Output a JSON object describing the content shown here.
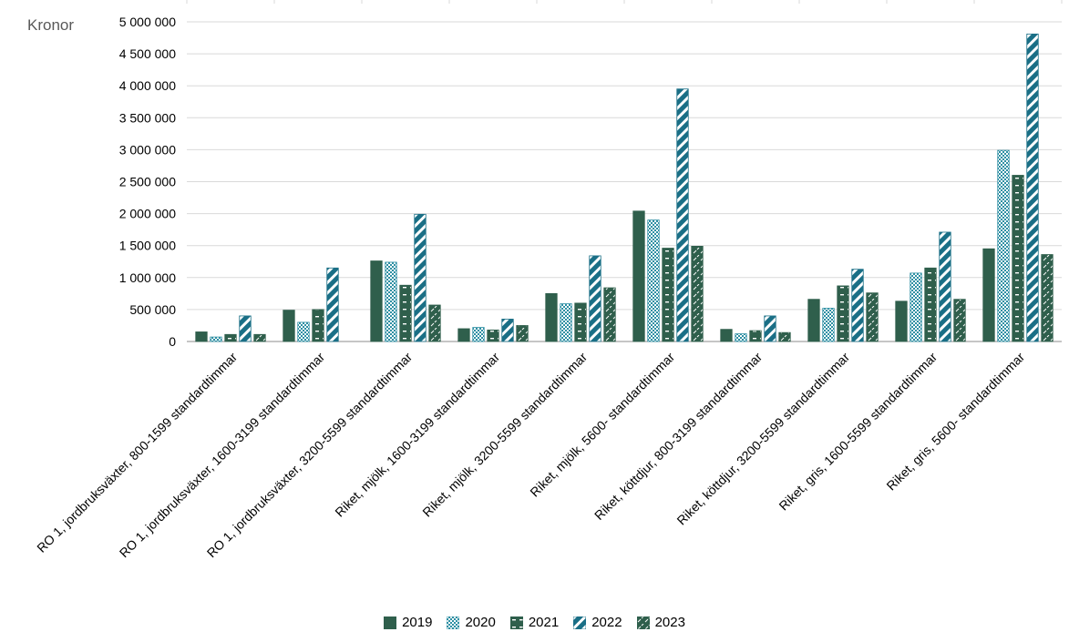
{
  "chart_data": {
    "type": "bar",
    "ylabel": "Kronor",
    "ylim": [
      0,
      5000000
    ],
    "ytick_step": 500000,
    "grid": true,
    "legend_position": "bottom",
    "categories": [
      "RO 1, jordbruksväxter, 800-1599 standardtimmar",
      "RO 1, jordbruksväxter, 1600-3199 standardtimmar",
      "RO 1, jordbruksväxter, 3200-5599 standardtimmar",
      "Riket, mjölk, 1600-3199 standardtimmar",
      "Riket, mjölk, 3200-5599 standardtimmar",
      "Riket, mjölk, 5600- standardtimmar",
      "Riket, köttdjur, 800-3199 standardtimmar",
      "Riket, köttdjur, 3200-5599 standardtimmar",
      "Riket, gris, 1600-5599 standardtimmar",
      "Riket, gris, 5600- standardtimmar"
    ],
    "series": [
      {
        "name": "2019",
        "pattern": "solid",
        "color": "#2f5f4c",
        "values": [
          150000,
          490000,
          1260000,
          200000,
          750000,
          2040000,
          190000,
          660000,
          630000,
          1450000
        ]
      },
      {
        "name": "2020",
        "pattern": "dots",
        "color": "#2e8fa3",
        "values": [
          70000,
          300000,
          1240000,
          220000,
          590000,
          1900000,
          120000,
          520000,
          1070000,
          2990000
        ]
      },
      {
        "name": "2021",
        "pattern": "dashes",
        "color": "#2f5f4c",
        "values": [
          110000,
          500000,
          880000,
          180000,
          600000,
          1460000,
          170000,
          870000,
          1150000,
          2600000
        ]
      },
      {
        "name": "2022",
        "pattern": "diagonal",
        "color": "#1a6f86",
        "values": [
          400000,
          1150000,
          1990000,
          350000,
          1340000,
          3950000,
          400000,
          1130000,
          1710000,
          4810000
        ]
      },
      {
        "name": "2023",
        "pattern": "dashdiag",
        "color": "#2f5f4c",
        "values": [
          110000,
          null,
          570000,
          250000,
          840000,
          1490000,
          140000,
          760000,
          660000,
          1360000
        ]
      }
    ]
  }
}
